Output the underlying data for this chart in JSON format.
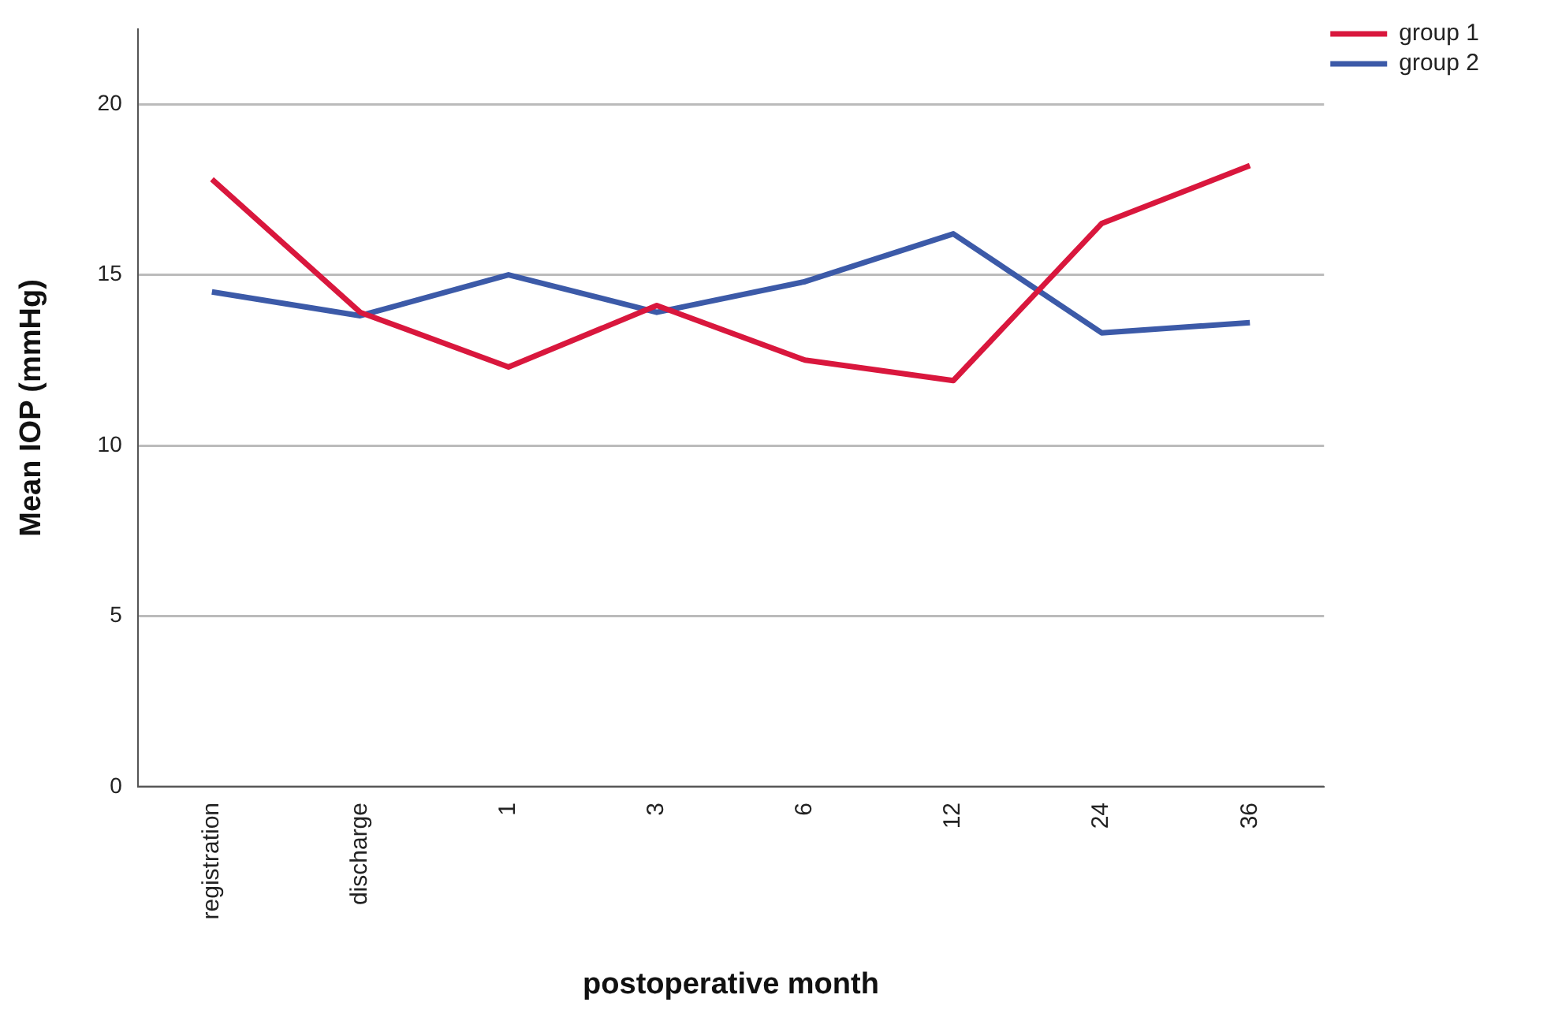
{
  "chart_data": {
    "type": "line",
    "xlabel": "postoperative month",
    "ylabel": "Mean IOP (mmHg)",
    "categories": [
      "registration",
      "discharge",
      "1",
      "3",
      "6",
      "12",
      "24",
      "36"
    ],
    "series": [
      {
        "name": "group 1",
        "color": "#d9173d",
        "values": [
          17.8,
          13.9,
          12.3,
          14.1,
          12.5,
          11.9,
          16.5,
          18.2
        ]
      },
      {
        "name": "group 2",
        "color": "#3c5aa8",
        "values": [
          14.5,
          13.8,
          15.0,
          13.9,
          14.8,
          16.2,
          13.3,
          13.6
        ]
      }
    ],
    "ylim": [
      0,
      22.2
    ],
    "yticks": [
      0,
      5,
      10,
      15,
      20
    ],
    "grid": "y",
    "legend": "top right",
    "marker": "none",
    "line_style": "solid"
  }
}
